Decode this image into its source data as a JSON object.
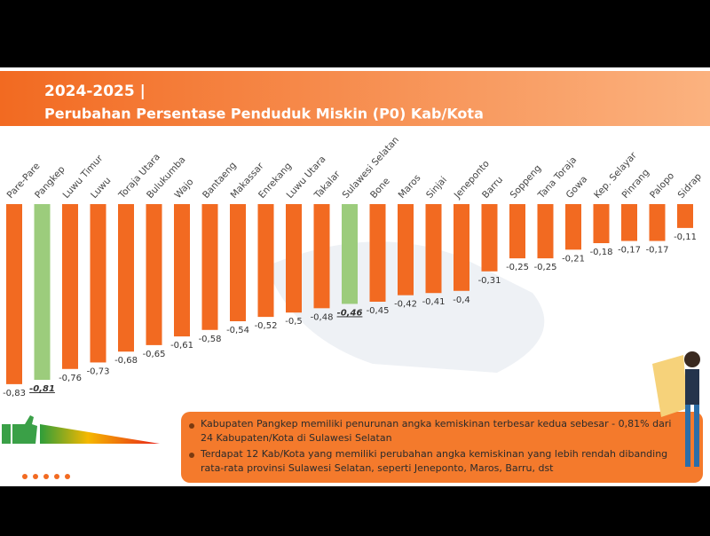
{
  "header": {
    "title": "2024-2025 |",
    "subtitle": "Perubahan Persentase Penduduk Miskin (P0) Kab/Kota"
  },
  "chart_data": {
    "type": "bar",
    "categories": [
      "Pare-Pare",
      "Pangkep",
      "Luwu Timur",
      "Luwu",
      "Toraja Utara",
      "Bulukumba",
      "Wajo",
      "Bantaeng",
      "Makassar",
      "Enrekang",
      "Luwu Utara",
      "Takalar",
      "Sulawesi Selatan",
      "Bone",
      "Maros",
      "Sinjai",
      "Jeneponto",
      "Barru",
      "Soppeng",
      "Tana Toraja",
      "Gowa",
      "Kep. Selayar",
      "Pinrang",
      "Palopo",
      "Sidrap"
    ],
    "values": [
      -0.83,
      -0.81,
      -0.76,
      -0.73,
      -0.68,
      -0.65,
      -0.61,
      -0.58,
      -0.54,
      -0.52,
      -0.5,
      -0.48,
      -0.46,
      -0.45,
      -0.42,
      -0.41,
      -0.4,
      -0.31,
      -0.25,
      -0.25,
      -0.21,
      -0.18,
      -0.17,
      -0.17,
      -0.11
    ],
    "value_labels": [
      "-0,83",
      "-0,81",
      "-0,76",
      "-0,73",
      "-0,68",
      "-0,65",
      "-0,61",
      "-0,58",
      "-0,54",
      "-0,52",
      "-0,5",
      "-0,48",
      "-0,46",
      "-0,45",
      "-0,42",
      "-0,41",
      "-0,4",
      "-0,31",
      "-0,25",
      "-0,25",
      "-0,21",
      "-0,18",
      "-0,17",
      "-0,17",
      "-0,11"
    ],
    "color": "#f26a21",
    "colors": [
      "#f26a21",
      "#9ccc7c",
      "#f26a21",
      "#f26a21",
      "#f26a21",
      "#f26a21",
      "#f26a21",
      "#f26a21",
      "#f26a21",
      "#f26a21",
      "#f26a21",
      "#f26a21",
      "#9ccc7c",
      "#f26a21",
      "#f26a21",
      "#f26a21",
      "#f26a21",
      "#f26a21",
      "#f26a21",
      "#f26a21",
      "#f26a21",
      "#f26a21",
      "#f26a21",
      "#f26a21",
      "#f26a21"
    ],
    "ylim": [
      -0.9,
      0
    ]
  },
  "notes": [
    "Kabupaten Pangkep memiliki penurunan angka kemiskinan terbesar kedua sebesar - 0,81% dari 24 Kabupaten/Kota di Sulawesi Selatan",
    "Terdapat 12 Kab/Kota yang memiliki perubahan angka kemiskinan yang lebih rendah dibanding rata-rata provinsi Sulawesi Selatan, seperti Jeneponto, Maros, Barru, dst"
  ]
}
